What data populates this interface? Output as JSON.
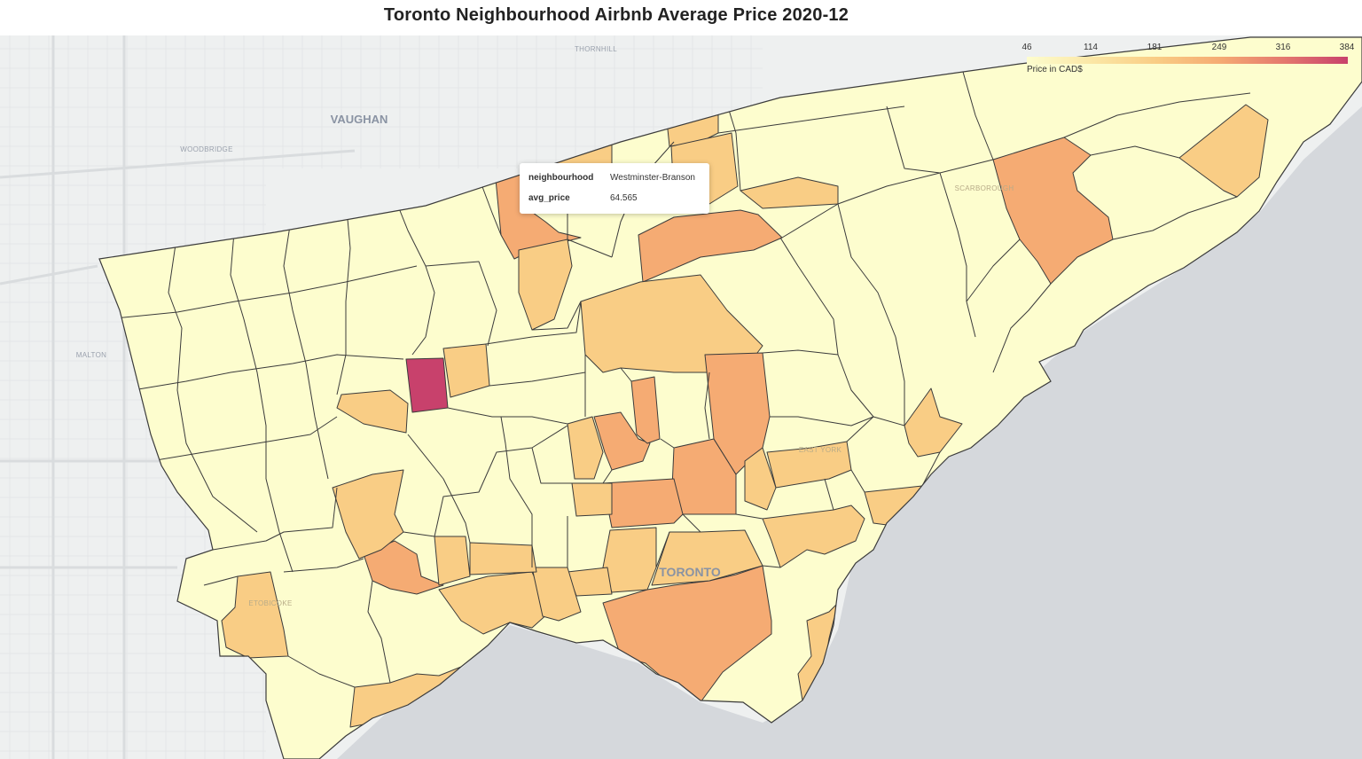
{
  "title": "Toronto Neighbourhood Airbnb Average Price 2020-12",
  "map_labels": {
    "vaughan": "VAUGHAN",
    "woodbridge": "WOODBRIDGE",
    "thornhill": "THORNHILL",
    "malton": "MALTON",
    "scarborough": "SCARBOROUGH",
    "east_york": "EAST YORK",
    "etobicoke": "ETOBICOKE",
    "toronto": "TORONTO"
  },
  "legend": {
    "title": "Price in CAD$",
    "ticks": [
      "46",
      "114",
      "181",
      "249",
      "316",
      "384"
    ],
    "min": 46,
    "max": 384,
    "colors": [
      "#fdfdce",
      "#fbe7a6",
      "#f9cd85",
      "#f5ab73",
      "#e4786e",
      "#c8416c"
    ]
  },
  "tooltip": {
    "rows": [
      {
        "key": "neighbourhood",
        "value": "Westminster-Branson"
      },
      {
        "key": "avg_price",
        "value": "64.565"
      }
    ]
  },
  "colors": {
    "water": "#d5d8dc",
    "land": "#eef0f0",
    "border": "#3b3b3b"
  }
}
